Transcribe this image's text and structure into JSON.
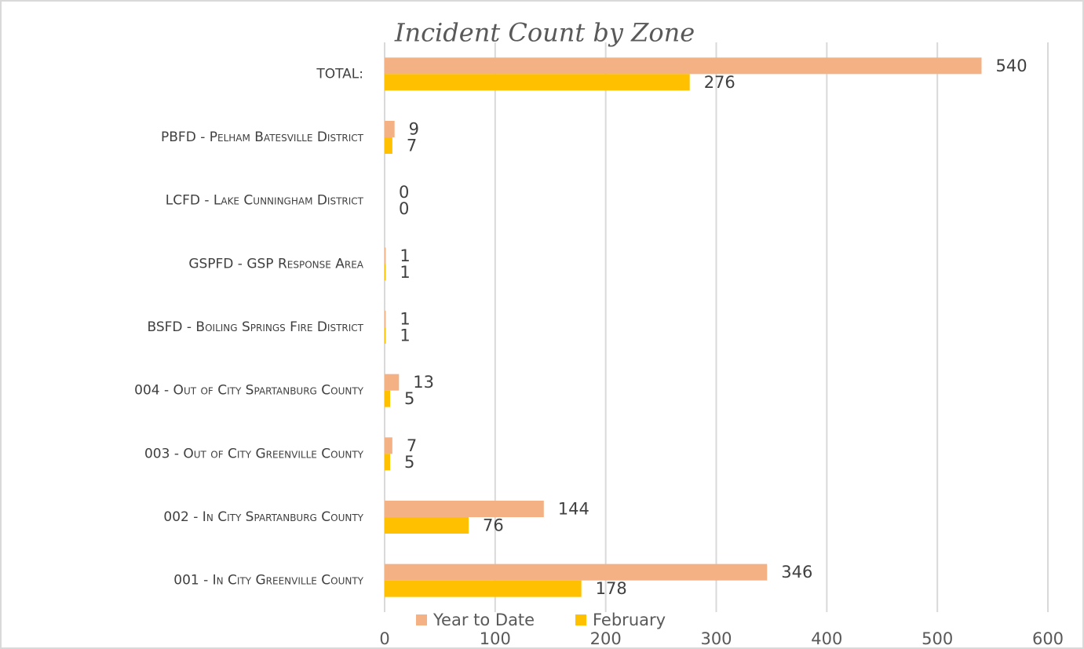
{
  "chart_data": {
    "type": "bar",
    "orientation": "horizontal",
    "title": "Incident Count by Zone",
    "categories": [
      "TOTAL:",
      "PBFD - Pelham Batesville District",
      "LCFD - Lake Cunningham District",
      "GSPFD - GSP Response Area",
      "BSFD - Boiling Springs Fire District",
      "004 - Out of City Spartanburg County",
      "003 - Out of City Greenville County",
      "002 - In City Spartanburg County",
      "001 - In City Greenville County"
    ],
    "series": [
      {
        "name": "Year to Date",
        "color": "#f4b183",
        "values": [
          540,
          9,
          0,
          1,
          1,
          13,
          7,
          144,
          346
        ]
      },
      {
        "name": "February",
        "color": "#ffc000",
        "values": [
          276,
          7,
          0,
          1,
          1,
          5,
          5,
          76,
          178
        ]
      }
    ],
    "xlim": [
      0,
      600
    ],
    "xticks": [
      0,
      100,
      200,
      300,
      400,
      500,
      600
    ],
    "grid": true,
    "legend": "bottom"
  }
}
